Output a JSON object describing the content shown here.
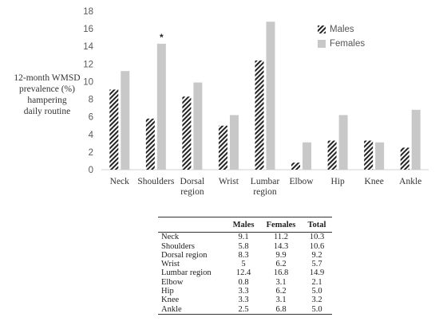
{
  "chart_data": {
    "type": "bar",
    "categories": [
      "Neck",
      "Shoulders",
      "Dorsal region",
      "Wrist",
      "Lumbar region",
      "Elbow",
      "Hip",
      "Knee",
      "Ankle"
    ],
    "category_labels": [
      [
        "Neck"
      ],
      [
        "Shoulders"
      ],
      [
        "Dorsal",
        "region"
      ],
      [
        "Wrist"
      ],
      [
        "Lumbar",
        "region"
      ],
      [
        "Elbow"
      ],
      [
        "Hip"
      ],
      [
        "Knee"
      ],
      [
        "Ankle"
      ]
    ],
    "series": [
      {
        "name": "Males",
        "values": [
          9.1,
          5.8,
          8.3,
          5.0,
          12.4,
          0.8,
          3.3,
          3.3,
          2.5
        ],
        "fill": "hatched",
        "color": "#222222"
      },
      {
        "name": "Females",
        "values": [
          11.2,
          14.3,
          9.9,
          6.2,
          16.8,
          3.1,
          6.2,
          3.1,
          6.8
        ],
        "fill": "solid",
        "color": "#c8c8c8"
      }
    ],
    "ylabel_lines": [
      "12-month WMSD",
      "prevalence (%)",
      "hampering",
      "daily routine"
    ],
    "xlabel": "",
    "ylim": [
      0,
      18
    ],
    "yticks": [
      0,
      2,
      4,
      6,
      8,
      10,
      12,
      14,
      16,
      18
    ],
    "grid": false,
    "legend_position": "top-right",
    "annotations": [
      {
        "category": "Shoulders",
        "series": "Females",
        "text": "*"
      }
    ]
  },
  "table": {
    "headers": [
      "",
      "Males",
      "Females",
      "Total"
    ],
    "rows": [
      [
        "Neck",
        "9.1",
        "11.2",
        "10.3"
      ],
      [
        "Shoulders",
        "5.8",
        "14.3",
        "10.6"
      ],
      [
        "Dorsal region",
        "8.3",
        "9.9",
        "9.2"
      ],
      [
        "Wrist",
        "5",
        "6.2",
        "5.7"
      ],
      [
        "Lumbar region",
        "12.4",
        "16.8",
        "14.9"
      ],
      [
        "Elbow",
        "0.8",
        "3.1",
        "2.1"
      ],
      [
        "Hip",
        "3.3",
        "6.2",
        "5.0"
      ],
      [
        "Knee",
        "3.3",
        "3.1",
        "3.2"
      ],
      [
        "Ankle",
        "2.5",
        "6.8",
        "5.0"
      ]
    ]
  }
}
